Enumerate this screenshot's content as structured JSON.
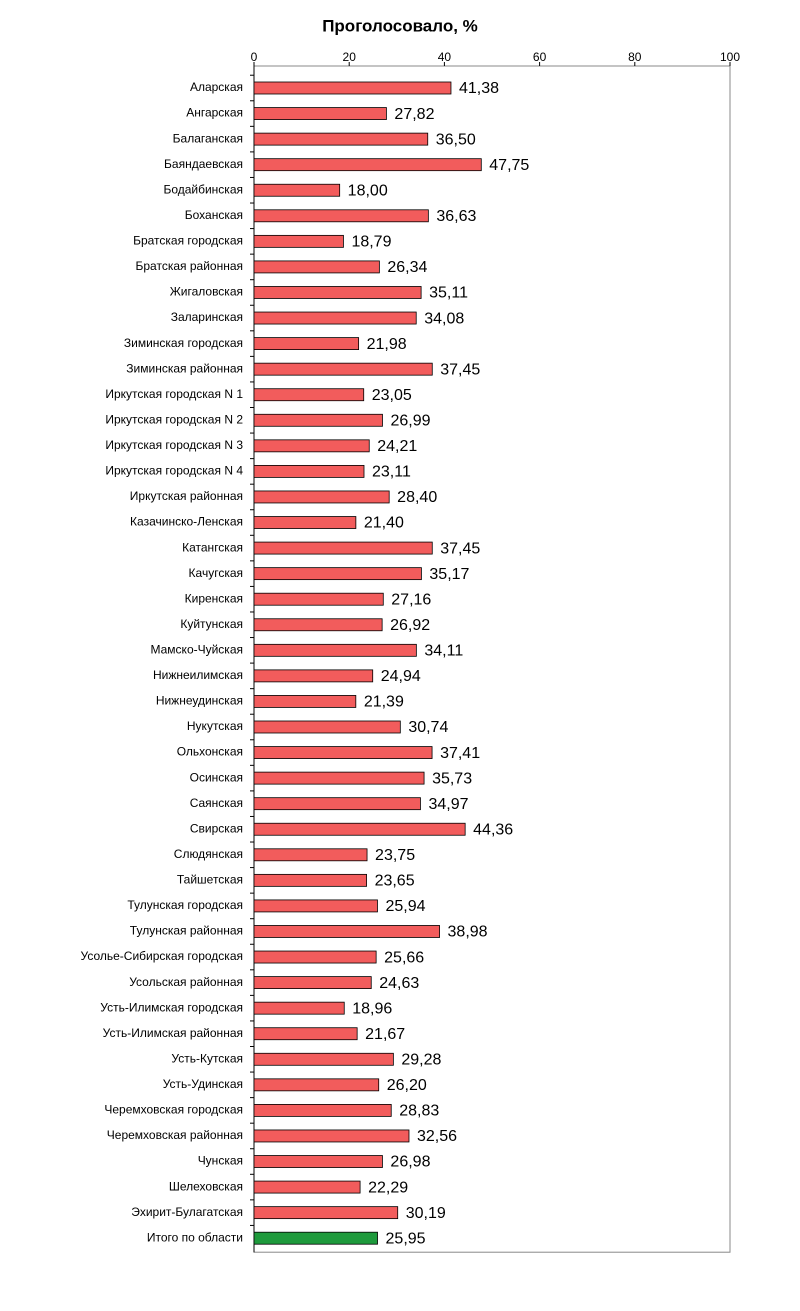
{
  "chart_data": {
    "type": "barh",
    "title": "Проголосовало, %",
    "categories": [
      "Аларская",
      "Ангарская",
      "Балаганская",
      "Баяндаевская",
      "Бодайбинская",
      "Боханская",
      "Братская городская",
      "Братская районная",
      "Жигаловская",
      "Заларинская",
      "Зиминская городская",
      "Зиминская районная",
      "Иркутская городская N 1",
      "Иркутская городская N 2",
      "Иркутская городская N 3",
      "Иркутская городская N 4",
      "Иркутская районная",
      "Казачинско-Ленская",
      "Катангская",
      "Качугская",
      "Киренская",
      "Куйтунская",
      "Мамско-Чуйская",
      "Нижнеилимская",
      "Нижнеудинская",
      "Нукутская",
      "Ольхонская",
      "Осинская",
      "Саянская",
      "Свирская",
      "Слюдянская",
      "Тайшетская",
      "Тулунская городская",
      "Тулунская районная",
      "Усолье-Сибирская городская",
      "Усольская районная",
      "Усть-Илимская городская",
      "Усть-Илимская районная",
      "Усть-Кутская",
      "Усть-Удинская",
      "Черемховская городская",
      "Черемховская районная",
      "Чунская",
      "Шелеховская",
      "Эхирит-Булагатская",
      "Итого по области"
    ],
    "values": [
      41.38,
      27.82,
      36.5,
      47.75,
      18.0,
      36.63,
      18.79,
      26.34,
      35.11,
      34.08,
      21.98,
      37.45,
      23.05,
      26.99,
      24.21,
      23.11,
      28.4,
      21.4,
      37.45,
      35.17,
      27.16,
      26.92,
      34.11,
      24.94,
      21.39,
      30.74,
      37.41,
      35.73,
      34.97,
      44.36,
      23.75,
      23.65,
      25.94,
      38.98,
      25.66,
      24.63,
      18.96,
      21.67,
      29.28,
      26.2,
      28.83,
      32.56,
      26.98,
      22.29,
      30.19,
      25.95
    ],
    "value_labels": [
      "41,38",
      "27,82",
      "36,50",
      "47,75",
      "18,00",
      "36,63",
      "18,79",
      "26,34",
      "35,11",
      "34,08",
      "21,98",
      "37,45",
      "23,05",
      "26,99",
      "24,21",
      "23,11",
      "28,40",
      "21,40",
      "37,45",
      "35,17",
      "27,16",
      "26,92",
      "34,11",
      "24,94",
      "21,39",
      "30,74",
      "37,41",
      "35,73",
      "34,97",
      "44,36",
      "23,75",
      "23,65",
      "25,94",
      "38,98",
      "25,66",
      "24,63",
      "18,96",
      "21,67",
      "29,28",
      "26,20",
      "28,83",
      "32,56",
      "26,98",
      "22,29",
      "30,19",
      "25,95"
    ],
    "colors": [
      "#f25c5c",
      "#f25c5c",
      "#f25c5c",
      "#f25c5c",
      "#f25c5c",
      "#f25c5c",
      "#f25c5c",
      "#f25c5c",
      "#f25c5c",
      "#f25c5c",
      "#f25c5c",
      "#f25c5c",
      "#f25c5c",
      "#f25c5c",
      "#f25c5c",
      "#f25c5c",
      "#f25c5c",
      "#f25c5c",
      "#f25c5c",
      "#f25c5c",
      "#f25c5c",
      "#f25c5c",
      "#f25c5c",
      "#f25c5c",
      "#f25c5c",
      "#f25c5c",
      "#f25c5c",
      "#f25c5c",
      "#f25c5c",
      "#f25c5c",
      "#f25c5c",
      "#f25c5c",
      "#f25c5c",
      "#f25c5c",
      "#f25c5c",
      "#f25c5c",
      "#f25c5c",
      "#f25c5c",
      "#f25c5c",
      "#f25c5c",
      "#f25c5c",
      "#f25c5c",
      "#f25c5c",
      "#f25c5c",
      "#f25c5c",
      "#1e9a3c"
    ],
    "xlim": [
      0,
      100
    ],
    "xticks": [
      0,
      20,
      40,
      60,
      80,
      100
    ]
  }
}
